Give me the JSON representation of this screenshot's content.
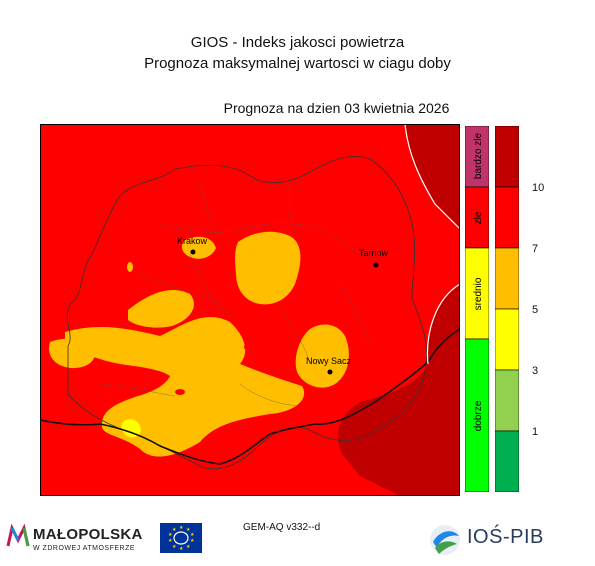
{
  "header": {
    "title_line1": "GIOS - Indeks jakosci powietrza",
    "title_line2": "Prognoza maksymalnej wartosci w ciagu doby",
    "forecast_date_line": "Prognoza na dzien  03 kwietnia 2026"
  },
  "map": {
    "cities": [
      {
        "name": "Krakow"
      },
      {
        "name": "Tarnow"
      },
      {
        "name": "Nowy Sacz"
      }
    ]
  },
  "quality_scale": [
    {
      "label": "bardzo zle",
      "color": "#c0346a"
    },
    {
      "label": "zle",
      "color": "#ff0000"
    },
    {
      "label": "srednio",
      "color": "#ffff00"
    },
    {
      "label": "dobrze",
      "color": "#00ff00"
    }
  ],
  "colorbar": {
    "colors": [
      "#c00000",
      "#ff0000",
      "#ffbf00",
      "#ffff00",
      "#92d050",
      "#00b050"
    ],
    "ticks": [
      "10",
      "7",
      "5",
      "3",
      "1"
    ]
  },
  "footer": {
    "model_label": "GEM-AQ v332--d",
    "malopolska_name": "MAŁOPOLSKA",
    "malopolska_tagline": "W ZDROWEJ ATMOSFERZE",
    "ios_name": "IOŚ-PIB"
  }
}
